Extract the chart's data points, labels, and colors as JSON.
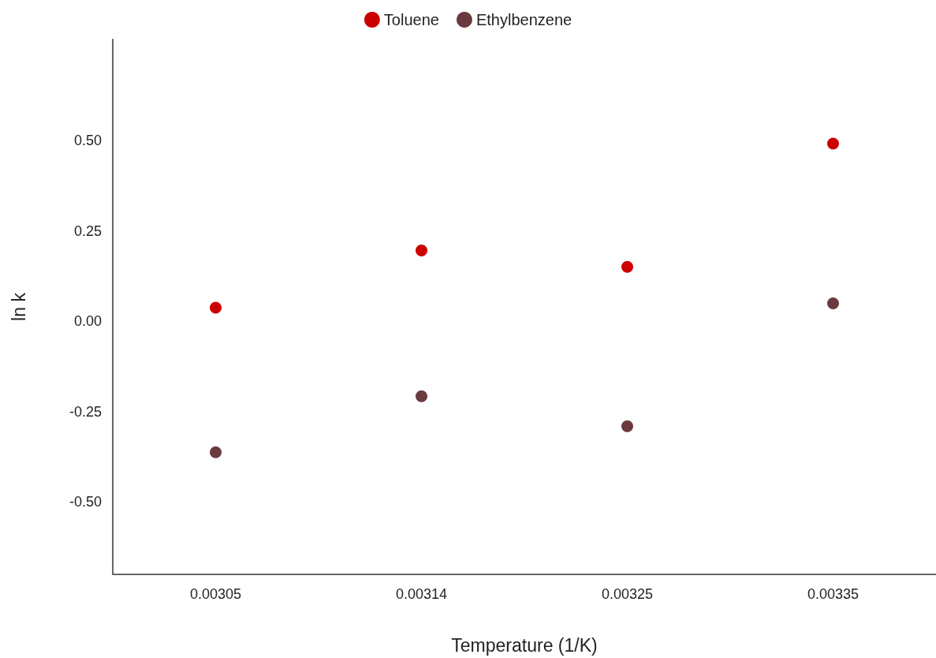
{
  "chart_data": {
    "type": "scatter",
    "xlabel": "Temperature (1/K)",
    "ylabel": "ln k",
    "categories": [
      "0.00305",
      "0.00314",
      "0.00325",
      "0.00335"
    ],
    "series": [
      {
        "name": "Toluene",
        "color": "#cc0000",
        "values": [
          0.038,
          0.196,
          0.151,
          0.492
        ]
      },
      {
        "name": "Ethylbenzene",
        "color": "#6b3a3e",
        "values": [
          -0.362,
          -0.207,
          -0.29,
          0.05
        ]
      }
    ],
    "ylim": [
      -0.7,
      0.78
    ],
    "yticks": [
      {
        "value": -0.5,
        "label": "-0.50"
      },
      {
        "value": -0.25,
        "label": "-0.25"
      },
      {
        "value": 0,
        "label": "0.00"
      },
      {
        "value": 0.25,
        "label": "0.25"
      },
      {
        "value": 0.5,
        "label": "0.50"
      }
    ],
    "legend": "top",
    "marker": "circle"
  }
}
